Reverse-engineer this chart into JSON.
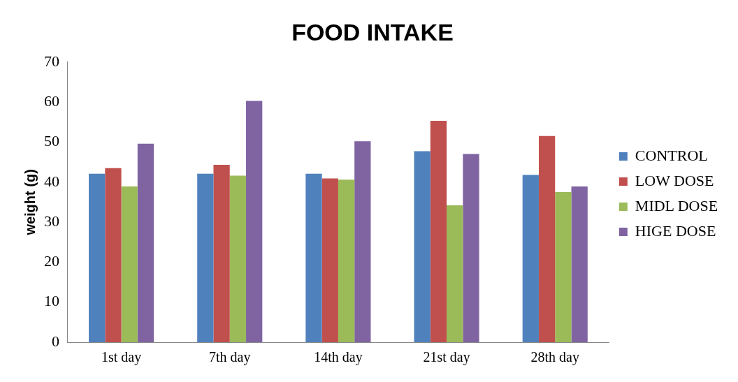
{
  "chart_data": {
    "type": "bar",
    "title": "FOOD INTAKE",
    "ylabel": "weight (g)",
    "categories": [
      "1st day",
      "7th day",
      "14th day",
      "21st day",
      "28th day"
    ],
    "series": [
      {
        "name": "CONTROL",
        "color": "#4f81bd",
        "values": [
          42.1,
          42.1,
          42.1,
          47.7,
          41.8
        ]
      },
      {
        "name": "LOW DOSE",
        "color": "#c0504d",
        "values": [
          43.5,
          44.3,
          40.9,
          55.3,
          51.5
        ]
      },
      {
        "name": "MIDL DOSE",
        "color": "#9bbb59",
        "values": [
          38.9,
          41.6,
          40.6,
          34.2,
          37.5
        ]
      },
      {
        "name": "HIGE DOSE",
        "color": "#8064a2",
        "values": [
          49.6,
          60.3,
          50.2,
          47.0,
          38.9
        ]
      }
    ],
    "ylim": [
      0,
      70
    ],
    "yticks": [
      0,
      10,
      20,
      30,
      40,
      50,
      60,
      70
    ],
    "grid": false,
    "legend": "right"
  }
}
